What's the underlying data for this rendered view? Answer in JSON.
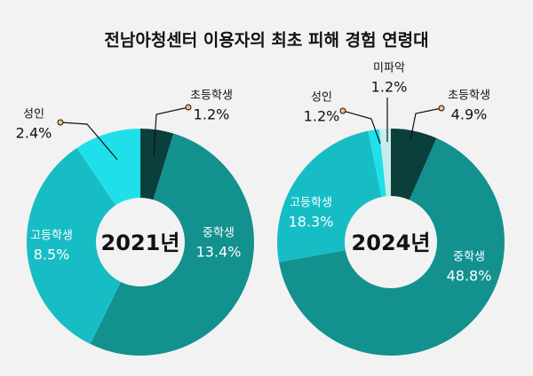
{
  "title": "전남아청센터 이용자의 최초 피해 경험 연령대",
  "chart_data": [
    {
      "type": "pie",
      "center_label": "2021년",
      "categories": [
        "초등학생",
        "중학생",
        "고등학생",
        "성인"
      ],
      "values": [
        1.2,
        13.4,
        8.5,
        2.4
      ],
      "value_labels": [
        "1.2%",
        "13.4%",
        "8.5%",
        "2.4%"
      ],
      "colors": [
        "#0b3f3c",
        "#12918f",
        "#17bdc4",
        "#1fe0ea"
      ]
    },
    {
      "type": "pie",
      "center_label": "2024년",
      "categories": [
        "초등학생",
        "중학생",
        "고등학생",
        "성인",
        "미파악"
      ],
      "values": [
        4.9,
        48.8,
        18.3,
        1.2,
        1.2
      ],
      "value_labels": [
        "4.9%",
        "48.8%",
        "18.3%",
        "1.2%",
        "1.2%"
      ],
      "colors": [
        "#0b3f3c",
        "#12918f",
        "#17bdc4",
        "#1fe0ea",
        "#c8ecea"
      ]
    }
  ]
}
